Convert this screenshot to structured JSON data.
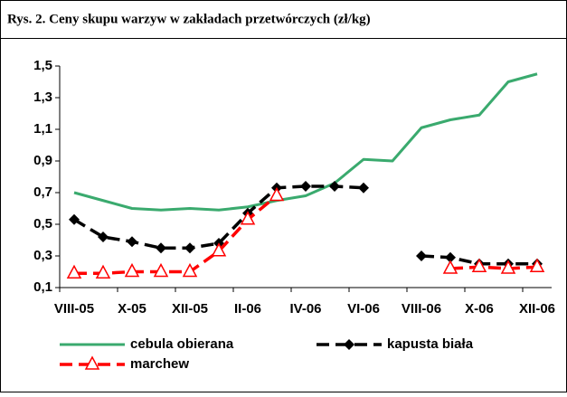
{
  "chart_data": {
    "type": "line",
    "title": "Rys. 2. Ceny skupu warzyw w zakładach przetwórczych (zł/kg)",
    "categories": [
      "VIII-05",
      null,
      "X-05",
      null,
      "XII-05",
      null,
      "II-06",
      null,
      "IV-06",
      null,
      "VI-06",
      null,
      "VIII-06",
      null,
      "X-06",
      null,
      "XII-06"
    ],
    "series": [
      {
        "name": "cebula obierana",
        "color": "#3aaa6e",
        "style": "solid",
        "marker": "none",
        "values": [
          0.7,
          0.65,
          0.6,
          0.59,
          0.6,
          0.59,
          0.61,
          0.65,
          0.68,
          0.76,
          0.91,
          0.9,
          1.11,
          1.16,
          1.19,
          1.4,
          1.45
        ]
      },
      {
        "name": "kapusta biała",
        "color": "#000000",
        "style": "dashed",
        "marker": "diamond",
        "values": [
          0.53,
          0.42,
          0.39,
          0.35,
          0.35,
          0.38,
          0.57,
          0.73,
          0.74,
          0.74,
          0.73,
          null,
          0.3,
          0.29,
          0.25,
          0.25,
          0.25
        ]
      },
      {
        "name": "marchew",
        "color": "#ff0000",
        "style": "dashed",
        "marker": "triangle",
        "values": [
          0.19,
          0.19,
          0.2,
          0.2,
          0.2,
          0.33,
          0.53,
          0.68,
          null,
          null,
          null,
          null,
          null,
          0.22,
          0.23,
          0.22,
          0.23
        ]
      }
    ],
    "ylim": [
      0.1,
      1.5
    ],
    "yticks": [
      {
        "value": 0.1,
        "label": "0,1"
      },
      {
        "value": 0.3,
        "label": "0,3"
      },
      {
        "value": 0.5,
        "label": "0,5"
      },
      {
        "value": 0.7,
        "label": "0,7"
      },
      {
        "value": 0.9,
        "label": "0,9"
      },
      {
        "value": 1.1,
        "label": "1,1"
      },
      {
        "value": 1.3,
        "label": "1,3"
      },
      {
        "value": 1.5,
        "label": "1,5"
      }
    ],
    "grid": false,
    "legend": "bottom"
  }
}
